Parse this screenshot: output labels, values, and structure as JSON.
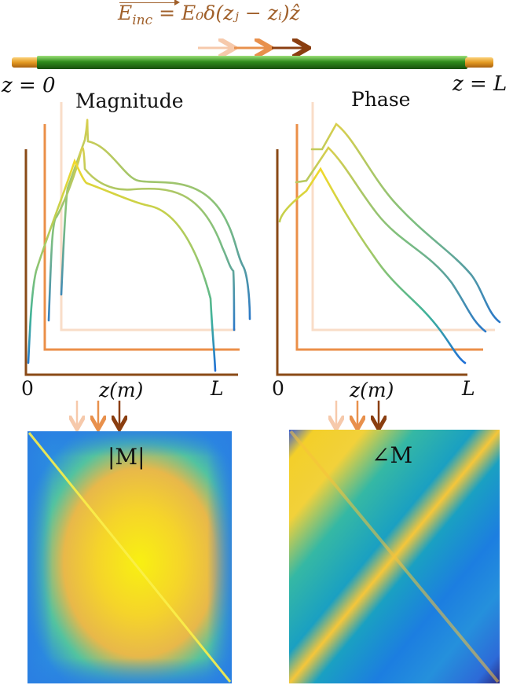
{
  "equation": {
    "field": "E",
    "field_sub": "inc",
    "rhs": "= E₀δ(zⱼ − zᵢ)ẑ"
  },
  "wire": {
    "left_label": "z = 0",
    "right_label": "z = L",
    "colors": {
      "tip": "#e8a030",
      "body": "#2e8a1e"
    }
  },
  "source_arrows": {
    "colors": [
      "#f6c9ab",
      "#e8904c",
      "#8a3e10"
    ]
  },
  "magnitude_plot": {
    "title": "Magnitude",
    "x_start_label": "0",
    "x_end_label": "L",
    "xlabel": "z(m)"
  },
  "phase_plot": {
    "title": "Phase",
    "x_start_label": "0",
    "x_end_label": "L",
    "xlabel": "z(m)"
  },
  "magnitude_matrix": {
    "label": "|M|"
  },
  "phase_matrix": {
    "label": "∠M"
  },
  "axis_colors": [
    "#8a4a16",
    "#eb8f48",
    "#f9ddc8"
  ]
}
